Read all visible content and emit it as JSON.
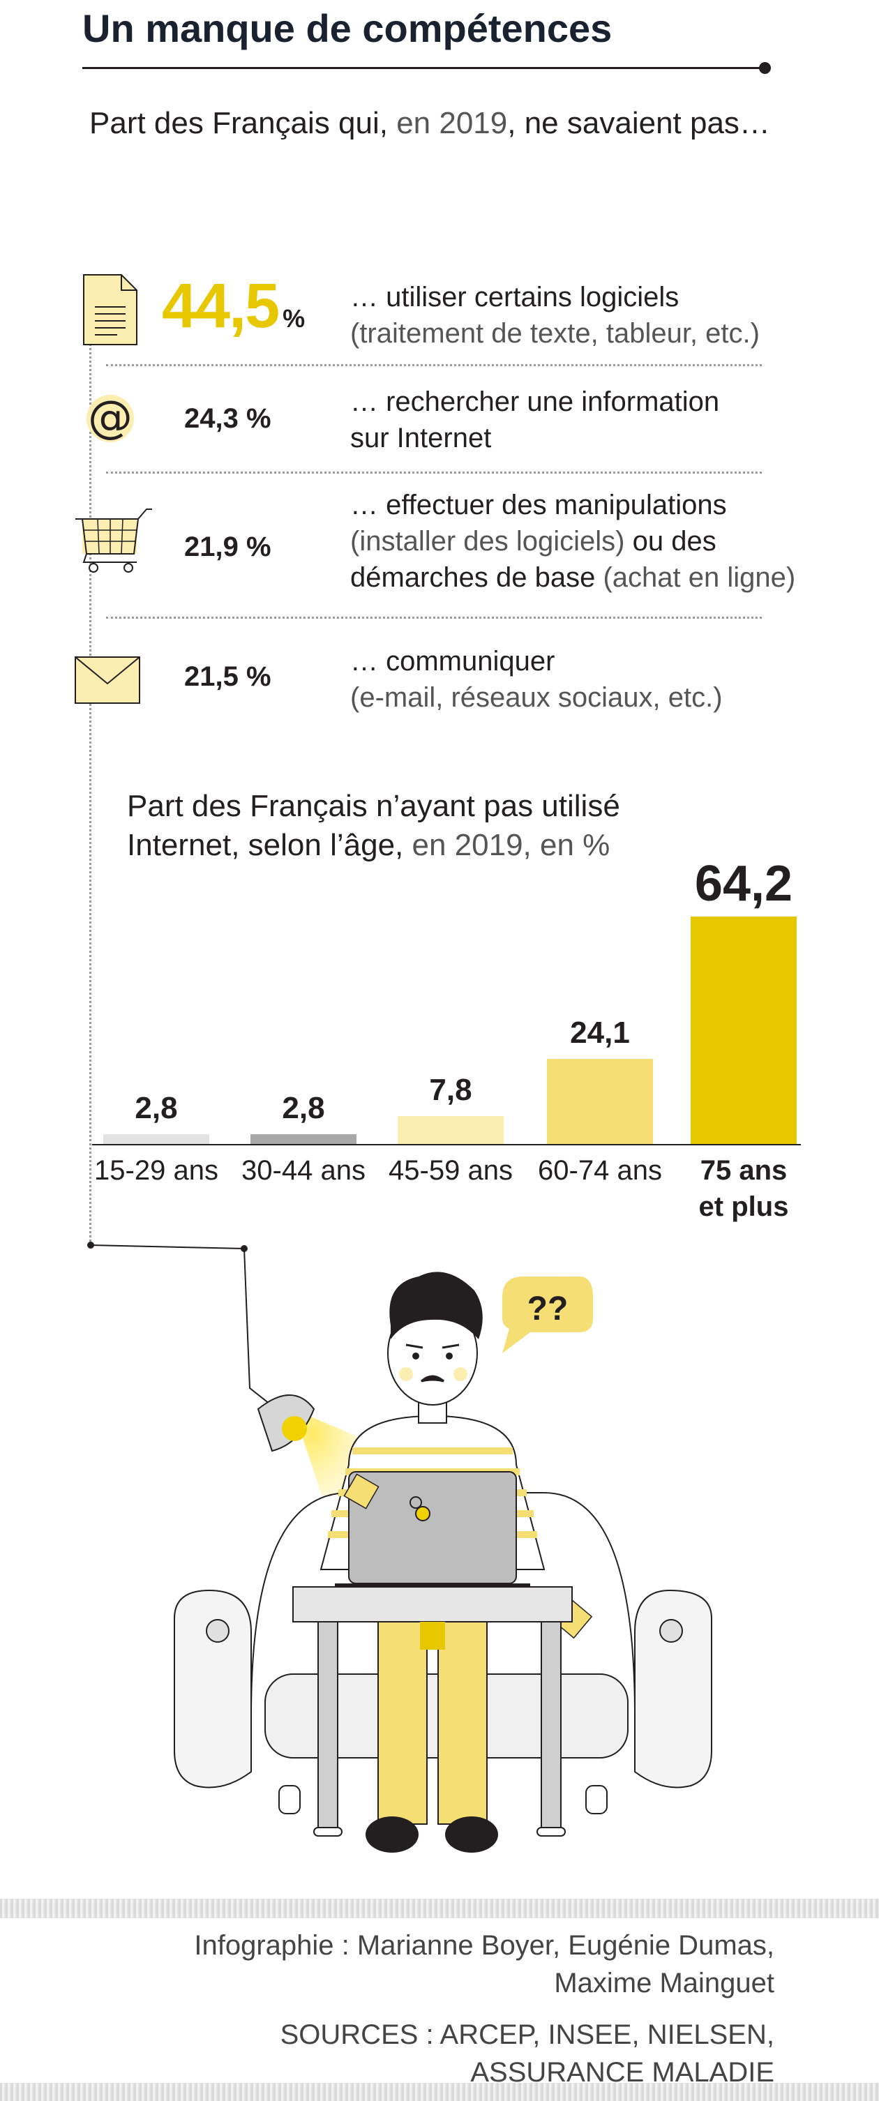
{
  "header": {
    "title": "Un manque de compétences",
    "subtitle_pre": "Part des Français qui, ",
    "subtitle_year": "en 2019",
    "subtitle_post": ", ne savaient pas…"
  },
  "stats": [
    {
      "value": "44,5",
      "unit": "%",
      "line1": "… utiliser certains logiciels",
      "line2": "(traitement de texte, tableur, etc.)",
      "icon": "document-icon"
    },
    {
      "value": "24,3 %",
      "line1": "… rechercher une information",
      "line2": "sur Internet",
      "icon": "at-sign-icon"
    },
    {
      "value": "21,9 %",
      "line1": "… effectuer des manipulations",
      "line2_a": "(installer des logiciels)",
      "line2_b": " ou des",
      "line3_a": "démarches de base",
      "line3_b": " (achat en ligne)",
      "icon": "shopping-cart-icon"
    },
    {
      "value": "21,5 %",
      "line1": "… communiquer",
      "line2": "(e-mail, réseaux sociaux, etc.)",
      "icon": "envelope-icon"
    }
  ],
  "chart_data": {
    "type": "bar",
    "title_line1": "Part des Français n’ayant pas utilisé",
    "title_line2_a": "Internet, selon l’âge,",
    "title_line2_b": " en 2019, en %",
    "categories": [
      "15-29 ans",
      "30-44 ans",
      "45-59 ans",
      "60-74 ans",
      "75 ans et plus"
    ],
    "category_lines": [
      [
        "15-29 ans"
      ],
      [
        "30-44 ans"
      ],
      [
        "45-59 ans"
      ],
      [
        "60-74 ans"
      ],
      [
        "75 ans",
        "et plus"
      ]
    ],
    "values": [
      2.8,
      2.8,
      7.8,
      24.1,
      64.2
    ],
    "value_labels": [
      "2,8",
      "2,8",
      "7,8",
      "24,1",
      "64,2"
    ],
    "colors": [
      "#e3e3e3",
      "#a8a8a8",
      "#fbeeb0",
      "#f5de73",
      "#e6c700"
    ],
    "ylim": [
      0,
      64.2
    ]
  },
  "illustration": {
    "speech_bubble": "??",
    "icon": "person-with-laptop-illustration"
  },
  "footer": {
    "credit_line1": "Infographie : Marianne Boyer, Eugénie Dumas,",
    "credit_line2": "Maxime Mainguet",
    "sources_line1": "Sources : ARCEP, INSEE, NIELSEN,",
    "sources_line2": "ASSURANCE MALADIE"
  }
}
